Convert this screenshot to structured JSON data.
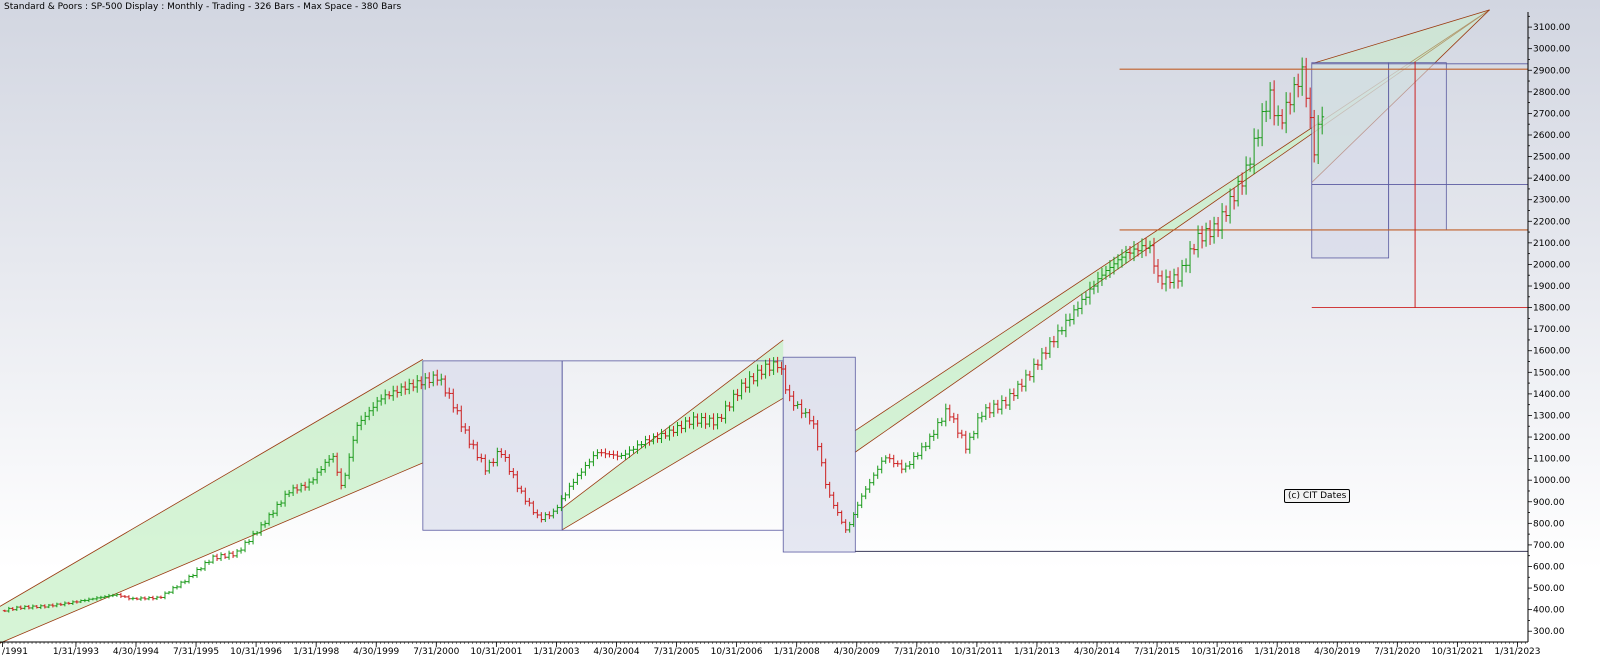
{
  "chart_title": "Standard & Poors : SP-500 Display :  Monthly  - Trading - 326 Bars - Max Space - 380 Bars",
  "copyright": "(c) CIT Dates",
  "colors": {
    "up": "#1a9a1a",
    "down": "#cc1f1f",
    "channel_fill": "#c8f0c8",
    "channel_line": "#9a3a10",
    "box_stroke": "#5a5aa0",
    "box_fill": "#d6d8ea",
    "level_line": "#c0602a",
    "target_line": "#cc2222",
    "baseline": "#3a3a5a"
  },
  "chart_data": {
    "type": "ohlc",
    "frequency": "monthly",
    "title": "Standard & Poors : SP-500 Display :  Monthly  - Trading - 326 Bars - Max Space - 380 Bars",
    "ylim": [
      250,
      3170
    ],
    "xlim": [
      1991.5,
      2023.3
    ],
    "yticks": [
      300,
      400,
      500,
      600,
      700,
      800,
      900,
      1000,
      1100,
      1200,
      1300,
      1400,
      1500,
      1600,
      1700,
      1800,
      1900,
      2000,
      2100,
      2200,
      2300,
      2400,
      2500,
      2600,
      2700,
      2800,
      2900,
      3000,
      3100
    ],
    "ytick_labels": [
      "300.00",
      "400.00",
      "500.00",
      "600.00",
      "700.00",
      "800.00",
      "900.00",
      "1000.00",
      "1100.00",
      "1200.00",
      "1300.00",
      "1400.00",
      "1500.00",
      "1600.00",
      "1700.00",
      "1800.00",
      "1900.00",
      "2000.00",
      "2100.00",
      "2200.00",
      "2300.00",
      "2400.00",
      "2500.00",
      "2600.00",
      "2700.00",
      "2800.00",
      "2900.00",
      "3000.00",
      "3100.00"
    ],
    "xticks": [
      {
        "label": "/1991",
        "t": 1991.55
      },
      {
        "label": "1/31/1993",
        "t": 1993.08
      },
      {
        "label": "4/30/1994",
        "t": 1994.33
      },
      {
        "label": "7/31/1995",
        "t": 1995.58
      },
      {
        "label": "10/31/1996",
        "t": 1996.83
      },
      {
        "label": "1/31/1998",
        "t": 1998.08
      },
      {
        "label": "4/30/1999",
        "t": 1999.33
      },
      {
        "label": "7/31/2000",
        "t": 2000.58
      },
      {
        "label": "10/31/2001",
        "t": 2001.83
      },
      {
        "label": "1/31/2003",
        "t": 2003.08
      },
      {
        "label": "4/30/2004",
        "t": 2004.33
      },
      {
        "label": "7/31/2005",
        "t": 2005.58
      },
      {
        "label": "10/31/2006",
        "t": 2006.83
      },
      {
        "label": "1/31/2008",
        "t": 2008.08
      },
      {
        "label": "4/30/2009",
        "t": 2009.33
      },
      {
        "label": "7/31/2010",
        "t": 2010.58
      },
      {
        "label": "10/31/2011",
        "t": 2011.83
      },
      {
        "label": "1/31/2013",
        "t": 2013.08
      },
      {
        "label": "4/30/2014",
        "t": 2014.33
      },
      {
        "label": "7/31/2015",
        "t": 2015.58
      },
      {
        "label": "10/31/2016",
        "t": 2016.83
      },
      {
        "label": "1/31/2018",
        "t": 2018.08
      },
      {
        "label": "4/30/2019",
        "t": 2019.33
      },
      {
        "label": "7/31/2020",
        "t": 2020.58
      },
      {
        "label": "10/31/2021",
        "t": 2021.83
      },
      {
        "label": "1/31/2023",
        "t": 2023.08
      }
    ],
    "price_path": [
      [
        1991.6,
        395
      ],
      [
        1992.0,
        410
      ],
      [
        1992.5,
        415
      ],
      [
        1993.0,
        430
      ],
      [
        1993.5,
        450
      ],
      [
        1994.0,
        470
      ],
      [
        1994.3,
        450
      ],
      [
        1994.9,
        455
      ],
      [
        1995.5,
        545
      ],
      [
        1996.0,
        640
      ],
      [
        1996.5,
        660
      ],
      [
        1997.0,
        780
      ],
      [
        1997.6,
        950
      ],
      [
        1998.0,
        980
      ],
      [
        1998.5,
        1120
      ],
      [
        1998.7,
        960
      ],
      [
        1999.0,
        1250
      ],
      [
        1999.5,
        1380
      ],
      [
        2000.0,
        1430
      ],
      [
        2000.7,
        1480
      ],
      [
        2001.0,
        1360
      ],
      [
        2001.3,
        1200
      ],
      [
        2001.7,
        1050
      ],
      [
        2002.0,
        1140
      ],
      [
        2002.4,
        950
      ],
      [
        2002.8,
        820
      ],
      [
        2003.1,
        850
      ],
      [
        2003.5,
        990
      ],
      [
        2004.0,
        1130
      ],
      [
        2004.5,
        1110
      ],
      [
        2005.0,
        1180
      ],
      [
        2005.5,
        1220
      ],
      [
        2006.0,
        1280
      ],
      [
        2006.5,
        1270
      ],
      [
        2007.0,
        1430
      ],
      [
        2007.5,
        1520
      ],
      [
        2007.8,
        1540
      ],
      [
        2008.0,
        1380
      ],
      [
        2008.5,
        1270
      ],
      [
        2008.8,
        950
      ],
      [
        2009.2,
        760
      ],
      [
        2009.5,
        920
      ],
      [
        2010.0,
        1110
      ],
      [
        2010.4,
        1050
      ],
      [
        2010.9,
        1180
      ],
      [
        2011.3,
        1330
      ],
      [
        2011.7,
        1150
      ],
      [
        2012.0,
        1310
      ],
      [
        2012.5,
        1360
      ],
      [
        2013.0,
        1490
      ],
      [
        2013.5,
        1650
      ],
      [
        2014.0,
        1800
      ],
      [
        2014.5,
        1950
      ],
      [
        2015.0,
        2050
      ],
      [
        2015.5,
        2090
      ],
      [
        2015.7,
        1920
      ],
      [
        2016.1,
        1940
      ],
      [
        2016.5,
        2120
      ],
      [
        2016.9,
        2170
      ],
      [
        2017.5,
        2420
      ],
      [
        2018.0,
        2790
      ],
      [
        2018.2,
        2650
      ],
      [
        2018.7,
        2900
      ],
      [
        2018.95,
        2500
      ],
      [
        2019.05,
        2700
      ]
    ],
    "channels": [
      {
        "t0": 1991.5,
        "lower0": 245,
        "upper0": 415,
        "t1": 2000.3,
        "lower1": 1080,
        "upper1": 1560
      },
      {
        "t0": 2003.2,
        "lower0": 770,
        "upper0": 870,
        "t1": 2007.8,
        "lower1": 1380,
        "upper1": 1650
      },
      {
        "t0": 2009.3,
        "lower0": 1130,
        "upper0": 1230,
        "t1": 2022.5,
        "lower1": 3180,
        "upper1": 3180
      },
      {
        "t0": 2018.8,
        "lower0": 2380,
        "upper0": 2930,
        "t1": 2022.5,
        "lower1": 3180,
        "upper1": 3180
      }
    ],
    "boxes": [
      {
        "t0": 2000.3,
        "t1": 2003.2,
        "low": 768,
        "high": 1553,
        "fill": true
      },
      {
        "t0": 2003.2,
        "t1": 2007.8,
        "low": 768,
        "high": 1553,
        "fill": false
      },
      {
        "t0": 2007.8,
        "t1": 2009.3,
        "low": 667,
        "high": 1570,
        "fill": true
      },
      {
        "t0": 2018.8,
        "t1": 2020.4,
        "low": 2030,
        "high": 2935,
        "fill": true
      },
      {
        "t0": 2020.4,
        "t1": 2021.6,
        "low": 2160,
        "high": 2935,
        "fill": true
      }
    ],
    "hlines": [
      {
        "t0": 2014.8,
        "t1": 2023.3,
        "value": 2905,
        "kind": "level"
      },
      {
        "t0": 2014.8,
        "t1": 2023.3,
        "value": 2160,
        "kind": "level"
      },
      {
        "t0": 2018.8,
        "t1": 2023.3,
        "value": 2930,
        "kind": "box"
      },
      {
        "t0": 2018.8,
        "t1": 2023.3,
        "value": 2370,
        "kind": "box"
      },
      {
        "t0": 2009.3,
        "t1": 2023.3,
        "value": 670,
        "kind": "baseline"
      },
      {
        "t0": 2018.8,
        "t1": 2023.3,
        "value": 1800,
        "kind": "target"
      }
    ],
    "vlines": [
      {
        "t": 2020.95,
        "low": 1800,
        "high": 2940
      }
    ]
  }
}
